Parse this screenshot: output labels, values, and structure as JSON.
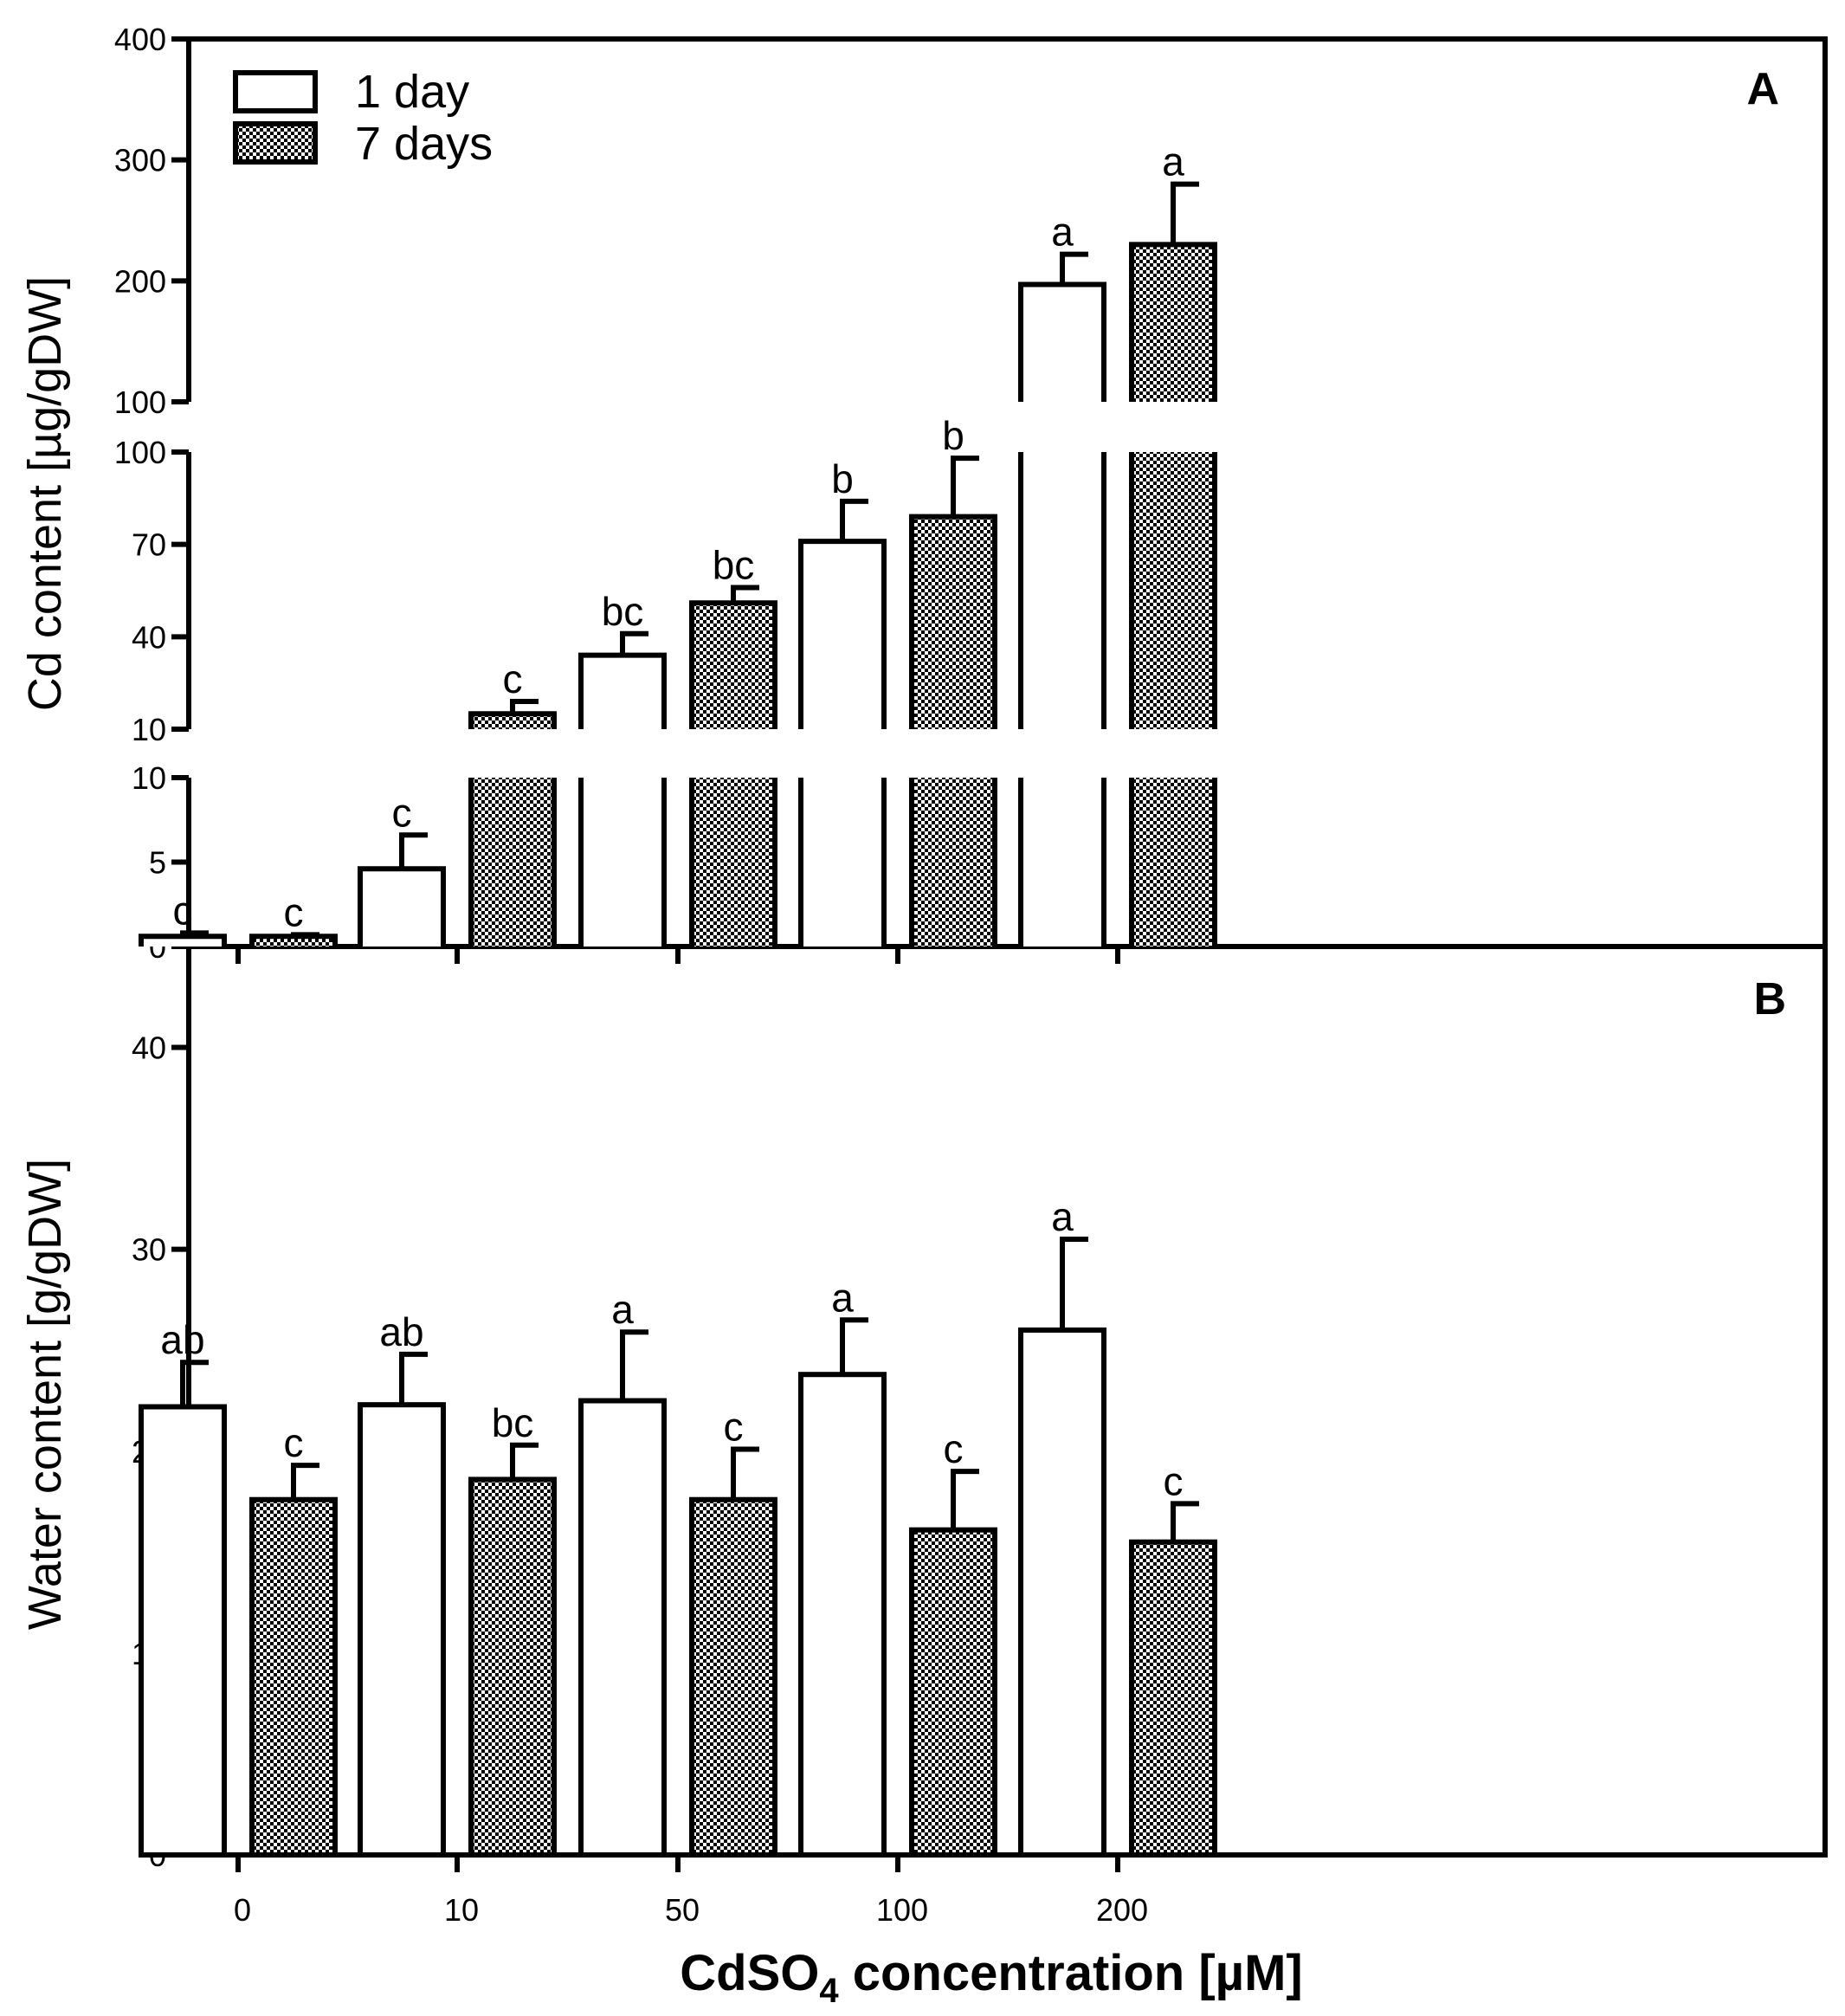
{
  "chart_data": [
    {
      "panel": "A",
      "type": "bar",
      "ylabel": "Cd content [µg/gDW]",
      "categories": [
        "0",
        "10",
        "50",
        "100",
        "200"
      ],
      "y_axis_break_segments": [
        {
          "range": [
            0,
            10
          ],
          "ticks": [
            "0",
            "5",
            "10"
          ]
        },
        {
          "range": [
            10,
            100
          ],
          "ticks": [
            "10",
            "40",
            "70",
            "100"
          ]
        },
        {
          "range": [
            100,
            400
          ],
          "ticks": [
            "100",
            "200",
            "300",
            "400"
          ]
        }
      ],
      "series": [
        {
          "name": "1 day",
          "values": [
            0.6,
            4.6,
            34,
            71,
            197
          ],
          "errors": [
            0.2,
            2.0,
            7,
            13,
            25
          ],
          "labels": [
            "c",
            "c",
            "bc",
            "b",
            "a"
          ]
        },
        {
          "name": "7 days",
          "values": [
            0.6,
            15,
            51,
            79,
            230
          ],
          "errors": [
            0.1,
            4,
            5,
            19,
            50
          ],
          "labels": [
            "c",
            "c",
            "bc",
            "b",
            "a"
          ]
        }
      ]
    },
    {
      "panel": "B",
      "type": "bar",
      "ylabel": "Water content [g/gDW]",
      "xlabel": "CdSO4 concentration [µM]",
      "categories": [
        "0",
        "10",
        "50",
        "100",
        "200"
      ],
      "ylim": [
        0,
        45
      ],
      "yticks": [
        "0",
        "10",
        "20",
        "30",
        "40"
      ],
      "series": [
        {
          "name": "1 day",
          "values": [
            22.2,
            22.3,
            22.5,
            23.8,
            26.0
          ],
          "errors": [
            2.2,
            2.5,
            3.4,
            2.7,
            4.5
          ],
          "labels": [
            "ab",
            "ab",
            "a",
            "a",
            "a"
          ]
        },
        {
          "name": "7 days",
          "values": [
            17.6,
            18.6,
            17.6,
            16.1,
            15.5
          ],
          "errors": [
            1.7,
            1.7,
            2.5,
            2.9,
            1.9
          ],
          "labels": [
            "c",
            "bc",
            "c",
            "c",
            "c"
          ]
        }
      ]
    }
  ],
  "legend": {
    "items": [
      "1 day",
      "7 days"
    ],
    "placement": "top-left"
  },
  "panel_letters": [
    "A",
    "B"
  ],
  "xaxis": {
    "title_prefix": "CdSO",
    "title_subscript": "4",
    "title_suffix": " concentration [µM]"
  },
  "colors": {
    "one_day_fill": "#ffffff",
    "seven_day_pattern_dark": "#000000",
    "seven_day_pattern_light": "#ffffff",
    "stroke": "#000000"
  }
}
